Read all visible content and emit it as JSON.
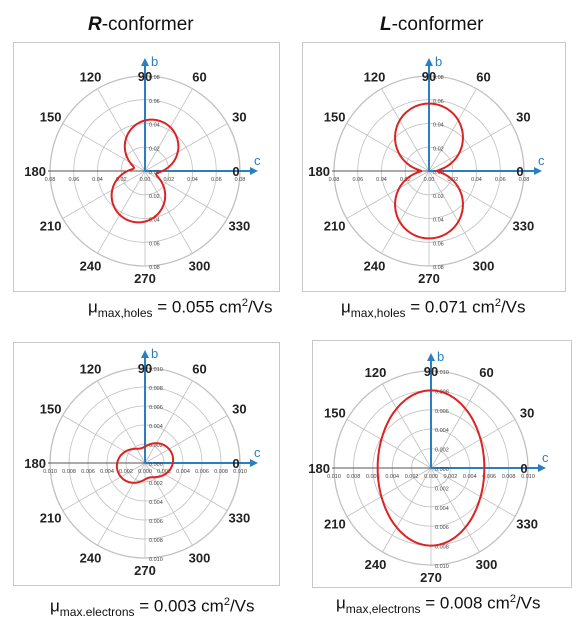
{
  "column_titles": [
    {
      "bold": "R",
      "rest": "-conformer"
    },
    {
      "bold": "L",
      "rest": "-conformer"
    }
  ],
  "captions": [
    {
      "mu": "μ",
      "sub": "max,holes",
      "value": " = 0.055 cm",
      "sup": "2",
      "unit": "/Vs"
    },
    {
      "mu": "μ",
      "sub": "max,holes",
      "value": " = 0.071 cm",
      "sup": "2",
      "unit": "/Vs"
    },
    {
      "mu": "μ",
      "sub": "max.electrons",
      "value": " = 0.003 cm",
      "sup": "2",
      "unit": "/Vs"
    },
    {
      "mu": "μ",
      "sub": "max,electrons",
      "value": " = 0.008 cm",
      "sup": "2",
      "unit": "/Vs"
    }
  ],
  "colors": {
    "curve": "#dd2222",
    "axis_arrow": "#2a7fc0",
    "grid": "#c0c0c0"
  },
  "chart_data": [
    {
      "type": "polar",
      "panel": "R-conformer holes",
      "angle_labels": [
        "90",
        "60",
        "30",
        "0",
        "330",
        "300",
        "270",
        "240",
        "210",
        "180",
        "150",
        "120"
      ],
      "axis_labels": {
        "up": "b",
        "right": "c"
      },
      "rmax": 0.1,
      "radial_ticks_up": [
        "0.08",
        "0.06",
        "0.04",
        "0.02",
        "0.00"
      ],
      "radial_ticks_down": [
        "0.02",
        "0.04",
        "0.06",
        "0.08"
      ],
      "horizontal_ticks": [
        "0.08",
        "0.06",
        "0.04",
        "0.02",
        "0.00",
        "0.02",
        "0.04",
        "0.06",
        "0.08"
      ],
      "curve": {
        "peak": 0.055,
        "min": 0.012,
        "shape": "peanut-vertical",
        "skew_deg": -15
      }
    },
    {
      "type": "polar",
      "panel": "L-conformer holes",
      "angle_labels": [
        "90",
        "60",
        "30",
        "0",
        "330",
        "300",
        "270",
        "240",
        "210",
        "180",
        "150",
        "120"
      ],
      "axis_labels": {
        "up": "b",
        "right": "c"
      },
      "rmax": 0.1,
      "radial_ticks_up": [
        "0.08",
        "0.06",
        "0.04",
        "0.02",
        "0.00"
      ],
      "radial_ticks_down": [
        "0.02",
        "0.04",
        "0.06",
        "0.08"
      ],
      "horizontal_ticks": [
        "0.08",
        "0.06",
        "0.04",
        "0.02",
        "0.00",
        "0.02",
        "0.04",
        "0.06",
        "0.08"
      ],
      "curve": {
        "peak": 0.071,
        "min": 0.008,
        "shape": "peanut-vertical",
        "skew_deg": 0
      }
    },
    {
      "type": "polar",
      "panel": "R-conformer electrons",
      "angle_labels": [
        "90",
        "60",
        "30",
        "0",
        "330",
        "300",
        "270",
        "240",
        "210",
        "180",
        "150",
        "120"
      ],
      "axis_labels": {
        "up": "b",
        "right": "c"
      },
      "rmax": 0.01,
      "radial_ticks_up": [
        "0.010",
        "0.008",
        "0.006",
        "0.004",
        "0.002",
        "0.000"
      ],
      "radial_ticks_down": [
        "0.002",
        "0.004",
        "0.006",
        "0.008",
        "0.010"
      ],
      "horizontal_ticks": [
        "0.010",
        "0.008",
        "0.006",
        "0.004",
        "0.002",
        "0.000",
        "0.002",
        "0.004",
        "0.006",
        "0.008",
        "0.010"
      ],
      "curve": {
        "peak": 0.003,
        "min": 0.0016,
        "shape": "peanut-horizontal",
        "skew_deg": 15
      }
    },
    {
      "type": "polar",
      "panel": "L-conformer electrons",
      "angle_labels": [
        "90",
        "60",
        "30",
        "0",
        "330",
        "300",
        "270",
        "240",
        "210",
        "180",
        "150",
        "120"
      ],
      "axis_labels": {
        "up": "b",
        "right": "c"
      },
      "rmax": 0.01,
      "radial_ticks_up": [
        "0.010",
        "0.008",
        "0.006",
        "0.004",
        "0.002",
        "0.000"
      ],
      "radial_ticks_down": [
        "0.002",
        "0.004",
        "0.006",
        "0.008",
        "0.010"
      ],
      "horizontal_ticks": [
        "0.010",
        "0.008",
        "0.006",
        "0.004",
        "0.002",
        "0.000",
        "0.002",
        "0.004",
        "0.006",
        "0.008",
        "0.010"
      ],
      "curve": {
        "peak": 0.008,
        "min": 0.0055,
        "shape": "ellipse-vertical",
        "skew_deg": 0
      }
    }
  ]
}
